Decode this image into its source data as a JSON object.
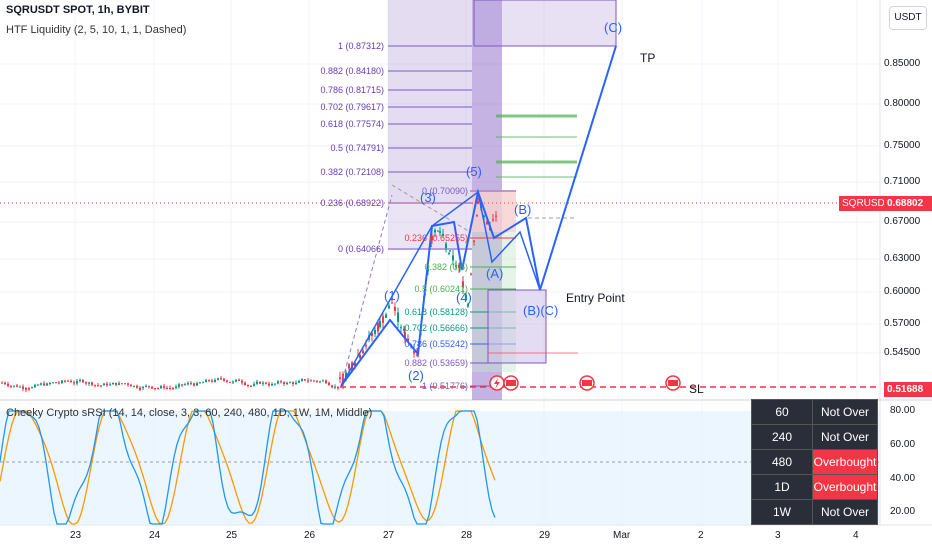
{
  "header": {
    "title": "SQRUSDT SPOT, 1h, BYBIT",
    "indicator_main": "HTF Liquidity (2, 5, 10, 1, 1, Dashed)",
    "indicator_sub": "Cheeky Crypto sRSI (14, 14, close, 3, 3, 60, 240, 480, 1D, 1W, 1M, Middle)"
  },
  "toolbar": {
    "currency_button": "USDT"
  },
  "price_axis": {
    "labels": [
      "0.85000",
      "0.80000",
      "0.75000",
      "0.71000",
      "0.67000",
      "0.63000",
      "0.60000",
      "0.57000",
      "0.54500"
    ],
    "symbol_tag": "SQRUSDT",
    "current_price": "0.68802",
    "stop_price": "0.51688"
  },
  "rsi_axis": {
    "labels": [
      "80.00",
      "60.00",
      "40.00",
      "20.00"
    ]
  },
  "time_axis": {
    "labels": [
      "23",
      "24",
      "25",
      "26",
      "27",
      "28",
      "29",
      "Mar",
      "2",
      "3",
      "4"
    ]
  },
  "fib_left": {
    "levels": [
      {
        "label": "1 (0.87312)",
        "price": 0.87312
      },
      {
        "label": "0.882 (0.84180)",
        "price": 0.8418
      },
      {
        "label": "0.786 (0.81715)",
        "price": 0.81715
      },
      {
        "label": "0.702 (0.79617)",
        "price": 0.79617
      },
      {
        "label": "0.618 (0.77574)",
        "price": 0.77574
      },
      {
        "label": "0.5 (0.74791)",
        "price": 0.74791
      },
      {
        "label": "0.382 (0.72108)",
        "price": 0.72108
      },
      {
        "label": "0.236 (0.68922)",
        "price": 0.68922
      },
      {
        "label": "0 (0.64066)",
        "price": 0.64066
      }
    ]
  },
  "fib_retrace": {
    "levels": [
      {
        "label": "0 (0.70090)",
        "price": 0.7009,
        "color": "#7e57c2"
      },
      {
        "label": "0.236 (0.65255)",
        "price": 0.65255,
        "color": "#f23645"
      },
      {
        "label": "0.382 (0.6)",
        "price": 0.623,
        "color": "#4caf50"
      },
      {
        "label": "0.5 (0.60241)",
        "price": 0.60241,
        "color": "#4caf50"
      },
      {
        "label": "0.618 (0.58128)",
        "price": 0.58128,
        "color": "#089981"
      },
      {
        "label": "0.702 (0.56666)",
        "price": 0.56666,
        "color": "#089981"
      },
      {
        "label": "0.786 (0.55242)",
        "price": 0.55242,
        "color": "#2962ff"
      },
      {
        "label": "0.882 (0.53659)",
        "price": 0.53659,
        "color": "#7e57c2"
      },
      {
        "label": "1 (0.51776)",
        "price": 0.51776,
        "color": "#7e57c2"
      }
    ]
  },
  "wave_labels": [
    "(1)",
    "(2)",
    "(3)",
    "(4)",
    "(5)",
    "(A)",
    "(B)",
    "(B)(C)",
    "(C)",
    "(A)"
  ],
  "annotations": {
    "tp": "TP",
    "entry": "Entry Point",
    "sl": "SL"
  },
  "status_table": [
    {
      "tf": "60",
      "state": "Not Over"
    },
    {
      "tf": "240",
      "state": "Not Over"
    },
    {
      "tf": "480",
      "state": "Overbought"
    },
    {
      "tf": "1D",
      "state": "Overbought"
    },
    {
      "tf": "1W",
      "state": "Not Over"
    }
  ],
  "colors": {
    "bull": "#089981",
    "bear": "#f23645",
    "wave": "#2962ff",
    "fib_zone": "#9575cd",
    "rsi_band": "#e3f2fd",
    "rsi_k": "#2196f3",
    "rsi_d": "#ff9800"
  }
}
